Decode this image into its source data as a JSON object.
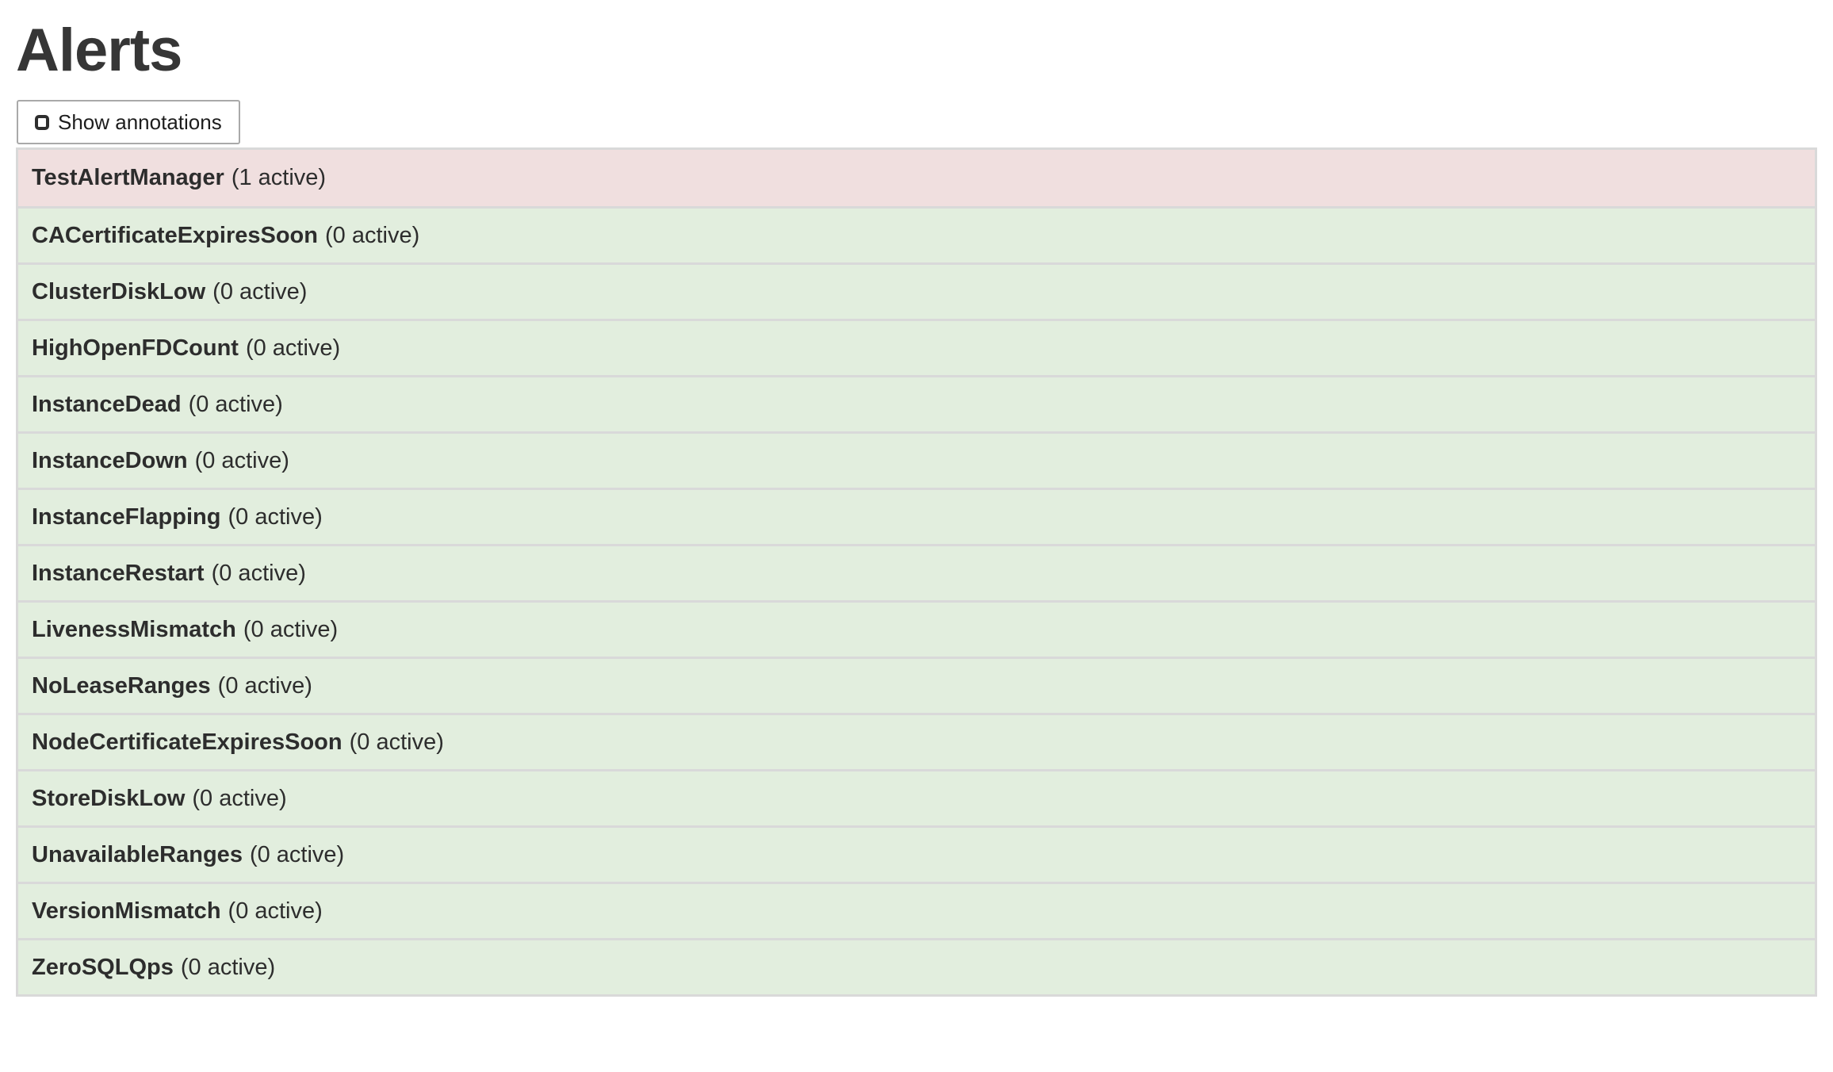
{
  "page": {
    "title": "Alerts"
  },
  "toolbar": {
    "show_annotations_label": "Show annotations",
    "annotations_checkbox_state": "unchecked"
  },
  "alerts": {
    "items": [
      {
        "name": "TestAlertManager",
        "active_count": 1,
        "active_label": "(1 active)",
        "state": "firing"
      },
      {
        "name": "CACertificateExpiresSoon",
        "active_count": 0,
        "active_label": "(0 active)",
        "state": "inactive"
      },
      {
        "name": "ClusterDiskLow",
        "active_count": 0,
        "active_label": "(0 active)",
        "state": "inactive"
      },
      {
        "name": "HighOpenFDCount",
        "active_count": 0,
        "active_label": "(0 active)",
        "state": "inactive"
      },
      {
        "name": "InstanceDead",
        "active_count": 0,
        "active_label": "(0 active)",
        "state": "inactive"
      },
      {
        "name": "InstanceDown",
        "active_count": 0,
        "active_label": "(0 active)",
        "state": "inactive"
      },
      {
        "name": "InstanceFlapping",
        "active_count": 0,
        "active_label": "(0 active)",
        "state": "inactive"
      },
      {
        "name": "InstanceRestart",
        "active_count": 0,
        "active_label": "(0 active)",
        "state": "inactive"
      },
      {
        "name": "LivenessMismatch",
        "active_count": 0,
        "active_label": "(0 active)",
        "state": "inactive"
      },
      {
        "name": "NoLeaseRanges",
        "active_count": 0,
        "active_label": "(0 active)",
        "state": "inactive"
      },
      {
        "name": "NodeCertificateExpiresSoon",
        "active_count": 0,
        "active_label": "(0 active)",
        "state": "inactive"
      },
      {
        "name": "StoreDiskLow",
        "active_count": 0,
        "active_label": "(0 active)",
        "state": "inactive"
      },
      {
        "name": "UnavailableRanges",
        "active_count": 0,
        "active_label": "(0 active)",
        "state": "inactive"
      },
      {
        "name": "VersionMismatch",
        "active_count": 0,
        "active_label": "(0 active)",
        "state": "inactive"
      },
      {
        "name": "ZeroSQLQps",
        "active_count": 0,
        "active_label": "(0 active)",
        "state": "inactive"
      }
    ]
  },
  "colors": {
    "firing_bg": "#f0dfdf",
    "inactive_bg": "#e2eede",
    "table_border": "#d9d9d9",
    "text": "#333333"
  }
}
